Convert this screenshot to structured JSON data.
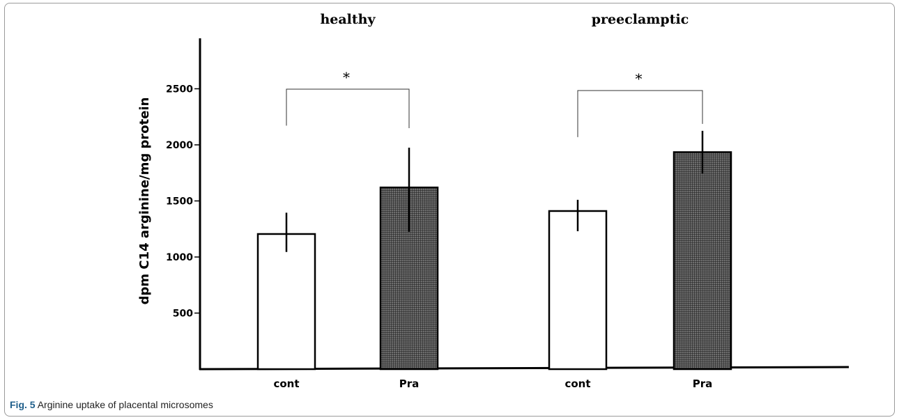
{
  "figure": {
    "label": "Fig. 5",
    "caption": "Arginine uptake of placental microsomes"
  },
  "colors": {
    "cont_fill": "#ffffff",
    "pra_fill": "#4a4a4a",
    "stroke": "#000000"
  },
  "chart_data": {
    "type": "bar",
    "ylabel": "dpm C14 arginine/mg protein",
    "ylim": [
      0,
      2950
    ],
    "yticks": [
      500,
      1000,
      1500,
      2000,
      2500
    ],
    "grid": false,
    "groups": [
      {
        "title": "healthy",
        "significance": "*",
        "bars": [
          {
            "category": "cont",
            "value": 1205,
            "err_low": 1045,
            "err_high": 1395
          },
          {
            "category": "Pra",
            "value": 1620,
            "err_low": 1225,
            "err_high": 1975
          }
        ]
      },
      {
        "title": "preeclamptic",
        "significance": "*",
        "bars": [
          {
            "category": "cont",
            "value": 1410,
            "err_low": 1230,
            "err_high": 1510
          },
          {
            "category": "Pra",
            "value": 1935,
            "err_low": 1745,
            "err_high": 2125
          }
        ]
      }
    ]
  }
}
